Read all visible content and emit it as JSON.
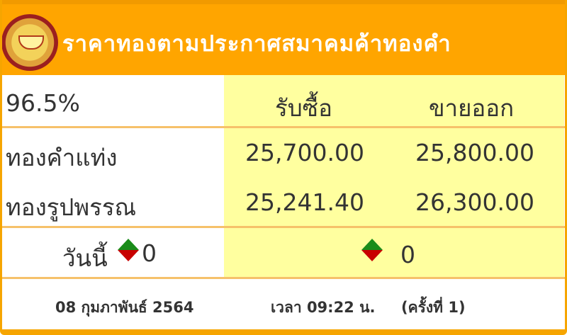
{
  "header": {
    "title": "ราคาทองตามประกาศสมาคมค้าทองคำ",
    "logo": "gold-traders-association-logo"
  },
  "table": {
    "purity": "96.5%",
    "col_buy": "รับซื้อ",
    "col_sell": "ขายออก",
    "rows": [
      {
        "label": "ทองคำแท่ง",
        "buy": "25,700.00",
        "sell": "25,800.00"
      },
      {
        "label": "ทองรูปพรรณ",
        "buy": "25,241.40",
        "sell": "26,300.00"
      }
    ],
    "today_label": "วันนี้",
    "today_change": "0",
    "change": "0"
  },
  "footer": {
    "date": "08 กุมภาพันธ์ 2564",
    "time": "เวลา 09:22 น.",
    "round": "(ครั้งที่ 1)"
  },
  "colors": {
    "header": "#ffa500",
    "highlight": "#ffff9f",
    "up": "#1a8c1a",
    "down": "#c80000"
  }
}
